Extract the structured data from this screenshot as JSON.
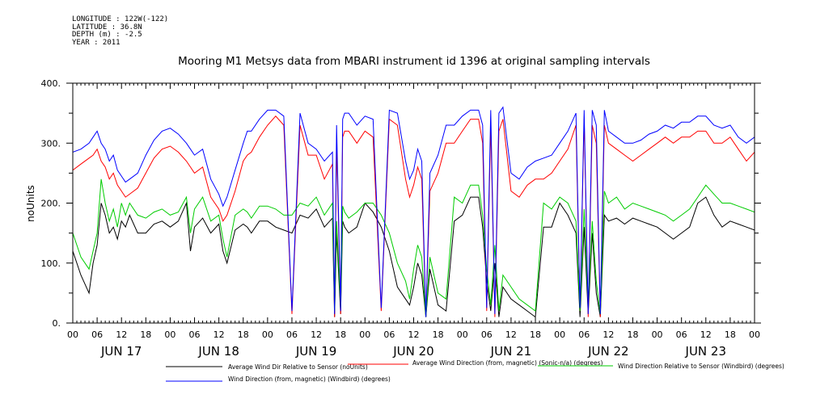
{
  "meta": {
    "longitude": "LONGITUDE : 122W(-122)",
    "latitude": "LATITUDE : 36.8N",
    "depth": "DEPTH (m) : -2.5",
    "year": "YEAR : 2011"
  },
  "chart_data": {
    "type": "line",
    "title": "Mooring M1 Metsys data from MBARI instrument id 1396 at original sampling intervals",
    "ylabel": "noUnits",
    "xlabel": "",
    "ylim": [
      0,
      400
    ],
    "y_ticks": [
      "0.",
      "100.",
      "200.",
      "300.",
      "400."
    ],
    "x_range_hours": [
      0,
      168
    ],
    "x_tick_labels": [
      "00",
      "06",
      "12",
      "18",
      "00",
      "06",
      "12",
      "18",
      "00",
      "06",
      "12",
      "18",
      "00",
      "06",
      "12",
      "18",
      "00",
      "06",
      "12",
      "18",
      "00",
      "06",
      "12",
      "18",
      "00",
      "06",
      "12",
      "18",
      "00"
    ],
    "day_labels": [
      "JUN 17",
      "JUN 18",
      "JUN 19",
      "JUN 20",
      "JUN 21",
      "JUN 22",
      "JUN 23"
    ],
    "grid": false,
    "legend_position": "bottom",
    "series": [
      {
        "name": "Average Wind Dir Relative to Sensor (noUnits)",
        "color": "#000000",
        "x": [
          0,
          2,
          4,
          5,
          6,
          7,
          8,
          9,
          10,
          11,
          12,
          13,
          14,
          16,
          18,
          20,
          22,
          24,
          26,
          28,
          29,
          30,
          32,
          34,
          36,
          37,
          38,
          40,
          42,
          43,
          44,
          46,
          48,
          50,
          52,
          54,
          56,
          58,
          60,
          62,
          64,
          64.5,
          65,
          66,
          66.5,
          67,
          68,
          70,
          72,
          74,
          76,
          78,
          80,
          82,
          83,
          84,
          85,
          86,
          87,
          88,
          90,
          92,
          94,
          96,
          98,
          100,
          101,
          102,
          103,
          104,
          105,
          106,
          108,
          110,
          112,
          114,
          116,
          118,
          120,
          122,
          124,
          125,
          126,
          127,
          128,
          129,
          130,
          131,
          132,
          134,
          136,
          138,
          140,
          142,
          144,
          146,
          148,
          150,
          152,
          154,
          156,
          158,
          160,
          162,
          164,
          166,
          168
        ],
        "y": [
          120,
          80,
          50,
          100,
          130,
          200,
          180,
          150,
          160,
          140,
          170,
          160,
          180,
          150,
          150,
          165,
          170,
          160,
          170,
          200,
          120,
          160,
          175,
          150,
          165,
          120,
          100,
          155,
          165,
          160,
          150,
          170,
          170,
          160,
          155,
          150,
          180,
          175,
          190,
          160,
          175,
          10,
          150,
          15,
          170,
          160,
          150,
          160,
          200,
          185,
          160,
          120,
          60,
          40,
          30,
          60,
          100,
          80,
          10,
          90,
          30,
          20,
          170,
          180,
          210,
          210,
          160,
          70,
          20,
          100,
          10,
          60,
          40,
          30,
          20,
          10,
          160,
          160,
          200,
          180,
          150,
          10,
          160,
          15,
          150,
          50,
          10,
          180,
          170,
          175,
          165,
          175,
          170,
          165,
          160,
          150,
          140,
          150,
          160,
          200,
          210,
          180,
          160,
          170,
          165,
          160,
          155
        ]
      },
      {
        "name": "Average Wind Direction (from, magnetic) (Sonic-n/a) (degrees)",
        "color": "#ff0000",
        "x": [
          0,
          2,
          4,
          5,
          6,
          7,
          8,
          9,
          10,
          11,
          12,
          13,
          14,
          16,
          18,
          20,
          22,
          24,
          26,
          28,
          29,
          30,
          32,
          34,
          36,
          37,
          38,
          40,
          42,
          43,
          44,
          46,
          48,
          50,
          52,
          54,
          56,
          58,
          60,
          62,
          64,
          64.5,
          65,
          66,
          66.5,
          67,
          68,
          70,
          72,
          74,
          76,
          78,
          80,
          82,
          83,
          84,
          85,
          86,
          87,
          88,
          90,
          92,
          94,
          96,
          98,
          100,
          101,
          102,
          103,
          104,
          105,
          106,
          108,
          110,
          112,
          114,
          116,
          118,
          120,
          122,
          124,
          125,
          126,
          127,
          128,
          129,
          130,
          131,
          132,
          134,
          136,
          138,
          140,
          142,
          144,
          146,
          148,
          150,
          152,
          154,
          156,
          158,
          160,
          162,
          164,
          166,
          168
        ],
        "y": [
          255,
          265,
          275,
          280,
          290,
          270,
          260,
          240,
          250,
          230,
          220,
          210,
          215,
          225,
          250,
          275,
          290,
          295,
          285,
          270,
          260,
          250,
          260,
          210,
          190,
          170,
          180,
          220,
          270,
          280,
          285,
          310,
          330,
          345,
          330,
          15,
          330,
          280,
          280,
          240,
          265,
          10,
          300,
          15,
          310,
          320,
          320,
          300,
          320,
          310,
          20,
          340,
          330,
          240,
          210,
          230,
          260,
          240,
          10,
          220,
          250,
          300,
          300,
          320,
          340,
          340,
          300,
          20,
          330,
          10,
          320,
          340,
          220,
          210,
          230,
          240,
          240,
          250,
          270,
          290,
          330,
          20,
          340,
          10,
          330,
          300,
          10,
          330,
          300,
          290,
          280,
          270,
          280,
          290,
          300,
          310,
          300,
          310,
          310,
          320,
          320,
          300,
          300,
          310,
          290,
          270,
          285
        ]
      },
      {
        "name": "Wind Direction Relative to Sensor (Windbird) (degrees)",
        "color": "#00cc00",
        "x": [
          0,
          2,
          4,
          5,
          6,
          7,
          8,
          9,
          10,
          11,
          12,
          13,
          14,
          16,
          18,
          20,
          22,
          24,
          26,
          28,
          29,
          30,
          32,
          34,
          36,
          37,
          38,
          40,
          42,
          43,
          44,
          46,
          48,
          50,
          52,
          54,
          56,
          58,
          60,
          62,
          64,
          64.5,
          65,
          66,
          66.5,
          67,
          68,
          70,
          72,
          74,
          76,
          78,
          80,
          82,
          83,
          84,
          85,
          86,
          87,
          88,
          90,
          92,
          94,
          96,
          98,
          100,
          101,
          102,
          103,
          104,
          105,
          106,
          108,
          110,
          112,
          114,
          116,
          118,
          120,
          122,
          124,
          125,
          126,
          127,
          128,
          129,
          130,
          131,
          132,
          134,
          136,
          138,
          140,
          142,
          144,
          146,
          148,
          150,
          152,
          154,
          156,
          158,
          160,
          162,
          164,
          166,
          168
        ],
        "y": [
          150,
          110,
          90,
          120,
          150,
          240,
          200,
          170,
          190,
          160,
          200,
          180,
          200,
          180,
          175,
          185,
          190,
          180,
          185,
          210,
          150,
          190,
          210,
          170,
          180,
          140,
          110,
          180,
          190,
          185,
          175,
          195,
          195,
          190,
          180,
          180,
          200,
          195,
          210,
          180,
          200,
          20,
          170,
          25,
          195,
          185,
          175,
          185,
          200,
          200,
          180,
          150,
          100,
          70,
          40,
          90,
          130,
          110,
          10,
          110,
          50,
          40,
          210,
          200,
          230,
          230,
          180,
          90,
          30,
          130,
          20,
          80,
          60,
          40,
          30,
          20,
          200,
          190,
          210,
          200,
          170,
          20,
          190,
          30,
          170,
          70,
          15,
          220,
          200,
          210,
          190,
          200,
          195,
          190,
          185,
          180,
          170,
          180,
          190,
          210,
          230,
          215,
          200,
          200,
          195,
          190,
          185
        ]
      },
      {
        "name": "Wind Direction (from, magnetic) (Windbird) (degrees)",
        "color": "#0000ff",
        "x": [
          0,
          2,
          4,
          5,
          6,
          7,
          8,
          9,
          10,
          11,
          12,
          13,
          14,
          16,
          18,
          20,
          22,
          24,
          26,
          28,
          29,
          30,
          32,
          34,
          36,
          37,
          38,
          40,
          42,
          43,
          44,
          46,
          48,
          50,
          52,
          54,
          56,
          58,
          60,
          62,
          64,
          64.5,
          65,
          66,
          66.5,
          67,
          68,
          70,
          72,
          74,
          76,
          78,
          80,
          82,
          83,
          84,
          85,
          86,
          87,
          88,
          90,
          92,
          94,
          96,
          98,
          100,
          101,
          102,
          103,
          104,
          105,
          106,
          108,
          110,
          112,
          114,
          116,
          118,
          120,
          122,
          124,
          125,
          126,
          127,
          128,
          129,
          130,
          131,
          132,
          134,
          136,
          138,
          140,
          142,
          144,
          146,
          148,
          150,
          152,
          154,
          156,
          158,
          160,
          162,
          164,
          166,
          168
        ],
        "y": [
          285,
          290,
          300,
          310,
          320,
          300,
          290,
          270,
          280,
          255,
          245,
          235,
          240,
          250,
          280,
          305,
          320,
          325,
          315,
          300,
          290,
          280,
          290,
          240,
          215,
          195,
          210,
          255,
          300,
          320,
          320,
          340,
          355,
          355,
          345,
          20,
          350,
          300,
          290,
          270,
          285,
          15,
          330,
          20,
          340,
          350,
          350,
          330,
          345,
          340,
          25,
          355,
          350,
          270,
          240,
          255,
          290,
          270,
          10,
          250,
          280,
          330,
          330,
          345,
          355,
          355,
          330,
          25,
          355,
          15,
          350,
          360,
          250,
          240,
          260,
          270,
          275,
          280,
          300,
          320,
          350,
          25,
          355,
          15,
          355,
          330,
          15,
          355,
          320,
          310,
          300,
          300,
          305,
          315,
          320,
          330,
          325,
          335,
          335,
          345,
          345,
          330,
          325,
          330,
          310,
          300,
          310
        ]
      }
    ]
  }
}
